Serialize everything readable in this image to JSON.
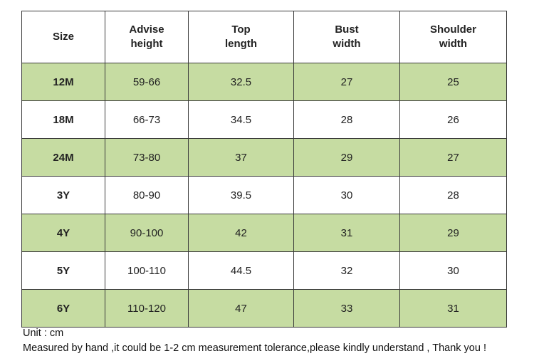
{
  "table": {
    "header": [
      "Size",
      "Advise\nheight",
      "Top\nlength",
      "Bust\nwidth",
      "Shoulder\nwidth"
    ],
    "rows": [
      [
        "12M",
        "59-66",
        32.5,
        27,
        25
      ],
      [
        "18M",
        "66-73",
        34.5,
        28,
        26
      ],
      [
        "24M",
        "73-80",
        37,
        29,
        27
      ],
      [
        "3Y",
        "80-90",
        39.5,
        30,
        28
      ],
      [
        "4Y",
        "90-100",
        42,
        31,
        29
      ],
      [
        "5Y",
        "100-110",
        44.5,
        32,
        30
      ],
      [
        "6Y",
        "110-120",
        47,
        33,
        31
      ]
    ]
  },
  "notes": [
    "Unit : cm",
    "Measured by hand ,it could be 1-2 cm measurement tolerance,please kindly understand , Thank you !"
  ]
}
